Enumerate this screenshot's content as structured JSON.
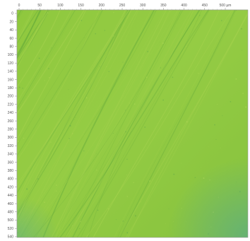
{
  "image": {
    "type": "surface-height-map",
    "x_axis": {
      "tick_labels": [
        "0",
        "50",
        "100",
        "150",
        "200",
        "250",
        "300",
        "350",
        "400",
        "450",
        "500 µm"
      ]
    },
    "y_axis": {
      "tick_labels": [
        "0",
        "20",
        "40",
        "60",
        "80",
        "100",
        "120",
        "140",
        "160",
        "180",
        "200",
        "220",
        "240",
        "260",
        "280",
        "300",
        "320",
        "340",
        "360",
        "380",
        "400",
        "420",
        "440",
        "460",
        "480",
        "500",
        "520",
        "540"
      ]
    },
    "colors": {
      "surface_main": "#8cc63f",
      "surface_light": "#a5d24e",
      "surface_dark": "#6fb23c",
      "edge_tint": "#4aa5a0",
      "axis": "#888888"
    }
  }
}
